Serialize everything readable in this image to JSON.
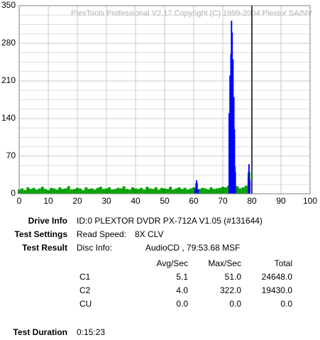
{
  "chart_data": {
    "type": "bar",
    "watermark": "PlexTools Professional V2.17 Copyright (C) 1999-2004 Plextor SA/NV",
    "xlim": [
      0,
      100
    ],
    "xticks": [
      0,
      10,
      20,
      30,
      40,
      50,
      60,
      70,
      80,
      90,
      100
    ],
    "ylim": [
      0,
      350
    ],
    "yticks": [
      0,
      70,
      140,
      210,
      280,
      350
    ],
    "grid": true,
    "marker_x": 80,
    "series": [
      {
        "name": "C1",
        "color": "#00a000",
        "x": [
          0,
          1,
          2,
          3,
          4,
          5,
          6,
          7,
          8,
          9,
          10,
          11,
          12,
          13,
          14,
          15,
          16,
          17,
          18,
          19,
          20,
          21,
          22,
          23,
          24,
          25,
          26,
          27,
          28,
          29,
          30,
          31,
          32,
          33,
          34,
          35,
          36,
          37,
          38,
          39,
          40,
          41,
          42,
          43,
          44,
          45,
          46,
          47,
          48,
          49,
          50,
          51,
          52,
          53,
          54,
          55,
          56,
          57,
          58,
          59,
          60,
          61,
          62,
          63,
          64,
          65,
          66,
          67,
          68,
          69,
          70,
          71,
          72,
          73,
          74,
          75,
          76,
          77,
          78,
          79
        ],
        "values": [
          8,
          10,
          7,
          12,
          9,
          11,
          8,
          10,
          13,
          9,
          7,
          11,
          10,
          8,
          12,
          9,
          10,
          14,
          8,
          9,
          11,
          10,
          7,
          12,
          9,
          10,
          8,
          11,
          13,
          9,
          10,
          12,
          8,
          9,
          11,
          10,
          14,
          9,
          8,
          12,
          10,
          9,
          11,
          8,
          13,
          10,
          9,
          12,
          8,
          11,
          10,
          9,
          13,
          8,
          10,
          12,
          9,
          11,
          8,
          10,
          12,
          20,
          9,
          11,
          10,
          8,
          12,
          9,
          10,
          11,
          13,
          12,
          15,
          30,
          51,
          14,
          10,
          12,
          15,
          40
        ]
      },
      {
        "name": "C2",
        "color": "#0000ff",
        "x": [
          60.5,
          61,
          61.5,
          72.2,
          72.5,
          72.8,
          73,
          73.2,
          73.5,
          73.8,
          74,
          74.3,
          78.8,
          79,
          79.3
        ],
        "values": [
          10,
          25,
          8,
          150,
          220,
          260,
          322,
          300,
          250,
          180,
          120,
          40,
          30,
          55,
          25
        ]
      }
    ]
  },
  "info": {
    "drive_label": "Drive Info",
    "drive": "ID:0 PLEXTOR DVDR PX-712A V1.05 (#131644)",
    "settings_label": "Test Settings",
    "speed_label": "Read Speed:",
    "speed": "8X CLV",
    "result_label": "Test Result",
    "disc_label": "Disc Info:",
    "disc": "AudioCD , 79:53.68 MSF",
    "table": {
      "header": [
        "Avg/Sec",
        "Max/Sec",
        "Total"
      ],
      "rows": [
        [
          "C1",
          "5.1",
          "51.0",
          "24648.0"
        ],
        [
          "C2",
          "4.0",
          "322.0",
          "19430.0"
        ],
        [
          "CU",
          "0.0",
          "0.0",
          "0.0"
        ]
      ]
    },
    "duration_label": "Test Duration",
    "duration": "0:15:23"
  }
}
